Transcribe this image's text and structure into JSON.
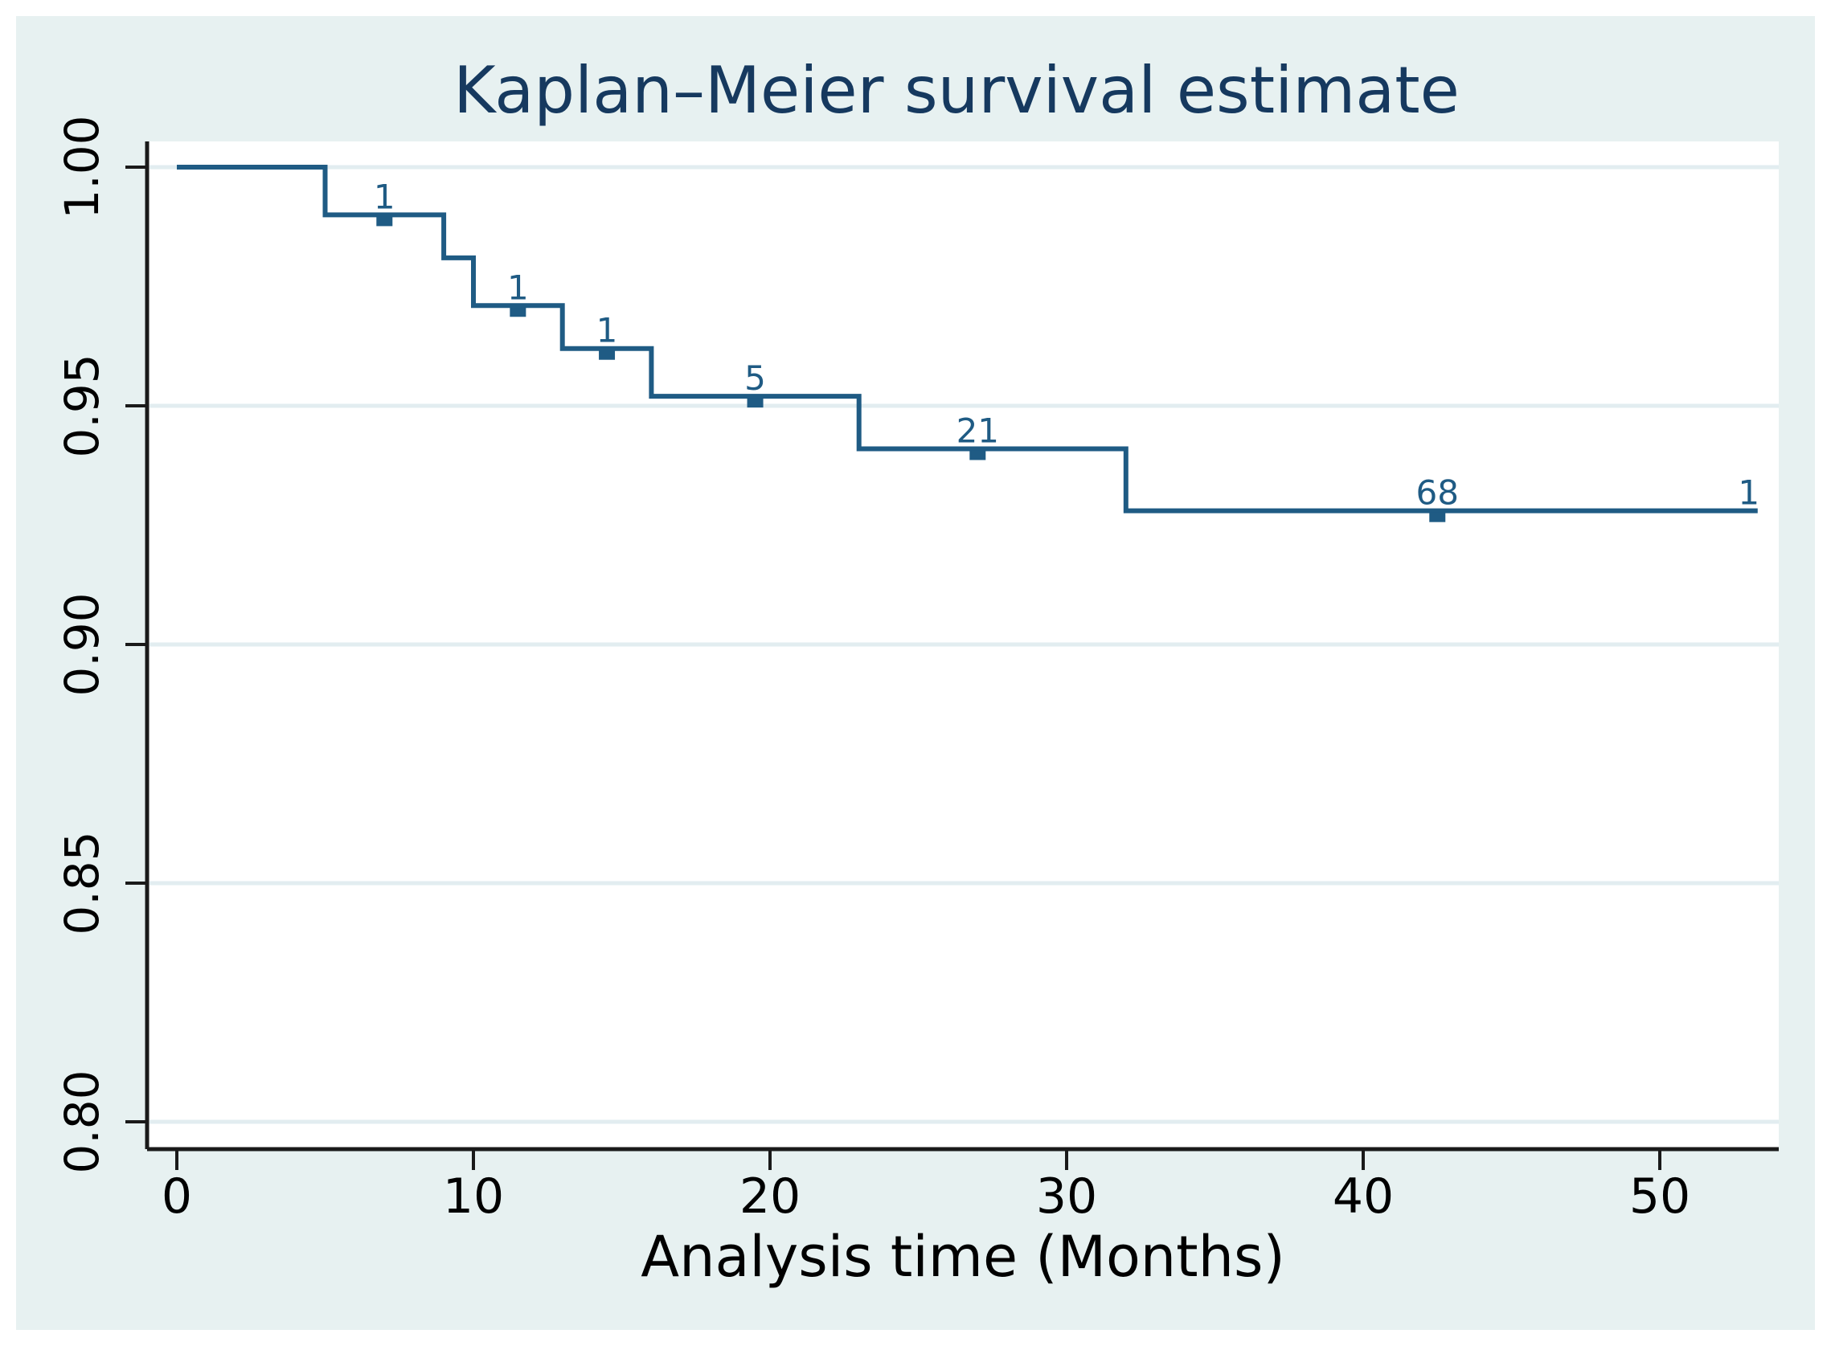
{
  "title": {
    "text": "Kaplan–Meier survival estimate"
  },
  "x_axis": {
    "label": "Analysis time (Months)",
    "ticks": [
      "0",
      "10",
      "20",
      "30",
      "40",
      "50"
    ],
    "tick_values": [
      0,
      10,
      20,
      30,
      40,
      50
    ]
  },
  "y_axis": {
    "tick_labels": [
      "1.00",
      "0.95",
      "0.90",
      "0.85",
      "0.80"
    ],
    "tick_values": [
      1.0,
      0.95,
      0.9,
      0.85,
      0.8
    ]
  },
  "chart_data": {
    "type": "line",
    "subtype": "kaplan-meier-step",
    "title": "Kaplan–Meier survival estimate",
    "xlabel": "Analysis time (Months)",
    "ylabel": "",
    "xlim": [
      0,
      54
    ],
    "ylim": [
      0.8,
      1.0
    ],
    "grid": "horizontal",
    "legend": "none",
    "steps": [
      {
        "t": 0,
        "s": 1.0
      },
      {
        "t": 5,
        "s": 0.99
      },
      {
        "t": 9,
        "s": 0.981
      },
      {
        "t": 10,
        "s": 0.971
      },
      {
        "t": 13,
        "s": 0.962
      },
      {
        "t": 16,
        "s": 0.952
      },
      {
        "t": 23,
        "s": 0.941
      },
      {
        "t": 32,
        "s": 0.928
      }
    ],
    "end_time": 53.3,
    "censor_marks": [
      {
        "t": 7,
        "s": 0.99,
        "label": "1"
      },
      {
        "t": 11.5,
        "s": 0.971,
        "label": "1"
      },
      {
        "t": 14.5,
        "s": 0.962,
        "label": "1"
      },
      {
        "t": 19.5,
        "s": 0.952,
        "label": "5"
      },
      {
        "t": 27,
        "s": 0.941,
        "label": "21"
      },
      {
        "t": 42.5,
        "s": 0.928,
        "label": "68"
      },
      {
        "t": 53,
        "s": 0.928,
        "label": "1",
        "at_end": true
      }
    ]
  },
  "colors": {
    "canvas": "#e7f1f1",
    "plot_bg": "#ffffff",
    "grid": "#e2edf0",
    "curve": "#1f5b84",
    "title_text": "#16395f",
    "axis": "#1a1a1a",
    "tick_text": "#000000"
  }
}
